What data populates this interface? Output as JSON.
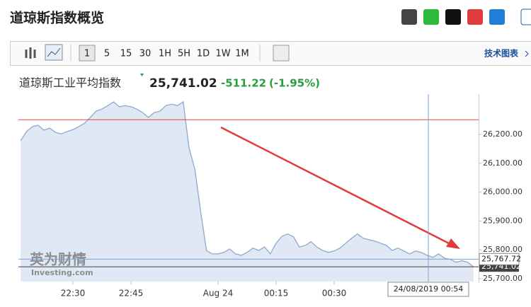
{
  "header": {
    "title": "道琼斯指数概览",
    "link": "技术图表"
  },
  "toolbar": {
    "intervals": [
      "1",
      "5",
      "15",
      "30",
      "1H",
      "5H",
      "1D",
      "1W",
      "1M"
    ]
  },
  "quote": {
    "name": "道琼斯工业平均指数",
    "price": "25,741.02",
    "change": "-511.22",
    "change_pct": "(-1.95%)"
  },
  "watermark": {
    "brand": "英为财情",
    "site": "Investing.com"
  },
  "chart_data": {
    "type": "area",
    "color": "#8fa9cc",
    "fill": "#dfe8f4",
    "categories": [
      null,
      null,
      null,
      null,
      null,
      null,
      null,
      null,
      null,
      "22:30",
      null,
      null,
      null,
      null,
      null,
      null,
      null,
      null,
      null,
      "22:45",
      null,
      null,
      null,
      null,
      null,
      null,
      null,
      null,
      null,
      null,
      null,
      null,
      null,
      null,
      "Aug 24",
      null,
      null,
      null,
      null,
      null,
      null,
      null,
      null,
      null,
      "00:15",
      null,
      null,
      null,
      null,
      null,
      null,
      null,
      null,
      null,
      "00:30",
      null,
      null,
      null,
      null,
      null,
      null,
      null,
      null,
      null,
      null,
      null,
      null,
      null,
      null,
      null,
      null,
      null,
      null,
      null,
      null,
      null,
      null,
      null,
      null
    ],
    "values": [
      26178,
      26210,
      26227,
      26232,
      26215,
      26222,
      26207,
      26202,
      26210,
      26217,
      26227,
      26239,
      26259,
      26281,
      26288,
      26300,
      26313,
      26296,
      26300,
      26296,
      26288,
      26276,
      26259,
      26276,
      26281,
      26300,
      26305,
      26300,
      26313,
      26153,
      26080,
      25933,
      25798,
      25786,
      25786,
      25791,
      25803,
      25786,
      25781,
      25791,
      25806,
      25798,
      25810,
      25786,
      25823,
      25847,
      25855,
      25845,
      25810,
      25815,
      25828,
      25810,
      25798,
      25791,
      25796,
      25806,
      25823,
      25840,
      25855,
      25840,
      25835,
      25830,
      25823,
      25815,
      25798,
      25806,
      25796,
      25786,
      25796,
      25791,
      25781,
      25774,
      25786,
      25771,
      25767,
      25757,
      25762,
      25757,
      25741.02
    ],
    "ylim": [
      25690,
      26340
    ],
    "yticks": [
      {
        "value": 25700,
        "label": "25,700.00"
      },
      {
        "value": 25800,
        "label": "25,800.00"
      },
      {
        "value": 25900,
        "label": "25,900.00"
      },
      {
        "value": 26000,
        "label": "26,000.00"
      },
      {
        "value": 26100,
        "label": "26,100.00"
      },
      {
        "value": 26200,
        "label": "26,200.00"
      }
    ],
    "prev_close_line": {
      "value": 26251,
      "color": "#e04848"
    },
    "crosshair": {
      "x_label": "24/08/2019 00:54",
      "y_value": 25767.72,
      "y_label": "25,767.72",
      "color": "#7fa2d0"
    }
  }
}
